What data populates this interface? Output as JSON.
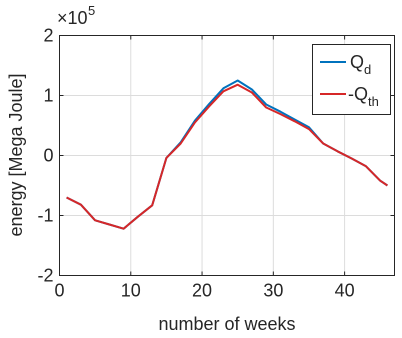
{
  "chart_data": {
    "type": "line",
    "xlabel": "number of weeks",
    "ylabel": "energy [Mega Joule]",
    "xlim": [
      0,
      47
    ],
    "ylim": [
      -2,
      2
    ],
    "xticks": [
      0,
      10,
      20,
      30,
      40
    ],
    "yticks": [
      -2,
      -1,
      0,
      1,
      2
    ],
    "xtick_labels": [
      "0",
      "10",
      "20",
      "30",
      "40"
    ],
    "ytick_labels": [
      "-2",
      "-1",
      "0",
      "1",
      "2"
    ],
    "y_multiplier": {
      "base": "×10",
      "exponent": "5"
    },
    "grid": true,
    "legend_position": "top-right",
    "series": [
      {
        "name": "Q",
        "subscript": "d",
        "color": "#0072bd",
        "x": [
          1,
          3,
          5,
          7,
          9,
          11,
          13,
          15,
          17,
          19,
          21,
          23,
          25,
          27,
          29,
          31,
          33,
          35,
          37,
          39,
          41,
          43,
          45,
          46
        ],
        "y": [
          -0.7,
          -0.82,
          -1.08,
          -1.15,
          -1.22,
          -1.02,
          -0.83,
          -0.04,
          0.22,
          0.58,
          0.86,
          1.12,
          1.25,
          1.1,
          0.85,
          0.73,
          0.6,
          0.47,
          0.2,
          0.07,
          -0.05,
          -0.18,
          -0.42,
          -0.5
        ]
      },
      {
        "name": "-Q",
        "subscript": "th",
        "color": "#d62728",
        "x": [
          1,
          3,
          5,
          7,
          9,
          11,
          13,
          15,
          17,
          19,
          21,
          23,
          25,
          27,
          29,
          31,
          33,
          35,
          37,
          39,
          41,
          43,
          45,
          46
        ],
        "y": [
          -0.7,
          -0.82,
          -1.08,
          -1.15,
          -1.22,
          -1.02,
          -0.83,
          -0.04,
          0.2,
          0.55,
          0.82,
          1.07,
          1.18,
          1.05,
          0.8,
          0.69,
          0.57,
          0.44,
          0.2,
          0.07,
          -0.05,
          -0.18,
          -0.42,
          -0.5
        ]
      }
    ]
  }
}
